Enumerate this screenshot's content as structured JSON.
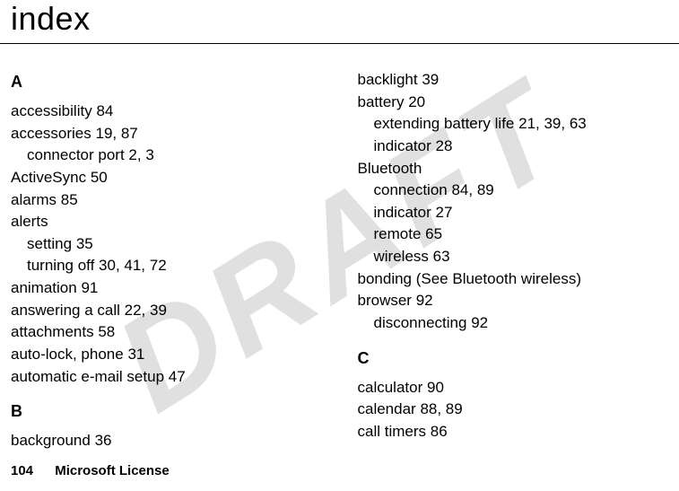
{
  "watermark": "DRAFT",
  "title": "index",
  "footer": {
    "page_number": "104",
    "license": "Microsoft License"
  },
  "left": {
    "sectionA": "A",
    "a": [
      {
        "term": "accessibility",
        "pages": "84"
      },
      {
        "term": "accessories",
        "pages": "19, 87"
      },
      {
        "term": "connector port",
        "pages": "2, 3",
        "sub": true
      },
      {
        "term": "ActiveSync",
        "pages": "50"
      },
      {
        "term": "alarms",
        "pages": "85"
      },
      {
        "term": "alerts",
        "pages": ""
      },
      {
        "term": "setting",
        "pages": "35",
        "sub": true
      },
      {
        "term": "turning off",
        "pages": "30, 41, 72",
        "sub": true
      },
      {
        "term": "animation",
        "pages": "91"
      },
      {
        "term": "answering a call",
        "pages": "22, 39"
      },
      {
        "term": "attachments",
        "pages": "58"
      },
      {
        "term": "auto-lock, phone",
        "pages": "31"
      },
      {
        "term": "automatic e-mail setup",
        "pages": "47"
      }
    ],
    "sectionB": "B",
    "b": [
      {
        "term": "background",
        "pages": "36"
      }
    ]
  },
  "right": {
    "top": [
      {
        "term": "backlight",
        "pages": "39"
      },
      {
        "term": "battery",
        "pages": "20"
      },
      {
        "term": "extending battery life",
        "pages": "21, 39, 63",
        "sub": true
      },
      {
        "term": "indicator",
        "pages": "28",
        "sub": true
      },
      {
        "term": "Bluetooth",
        "pages": ""
      },
      {
        "term": "connection",
        "pages": "84, 89",
        "sub": true
      },
      {
        "term": "indicator",
        "pages": "27",
        "sub": true
      },
      {
        "term": "remote",
        "pages": "65",
        "sub": true
      },
      {
        "term": "wireless",
        "pages": "63",
        "sub": true
      },
      {
        "term": "bonding (See Bluetooth wireless)",
        "pages": ""
      },
      {
        "term": "browser",
        "pages": "92"
      },
      {
        "term": "disconnecting",
        "pages": "92",
        "sub": true
      }
    ],
    "sectionC": "C",
    "c": [
      {
        "term": "calculator",
        "pages": "90"
      },
      {
        "term": "calendar",
        "pages": "88, 89"
      },
      {
        "term": "call timers",
        "pages": "86"
      }
    ]
  }
}
